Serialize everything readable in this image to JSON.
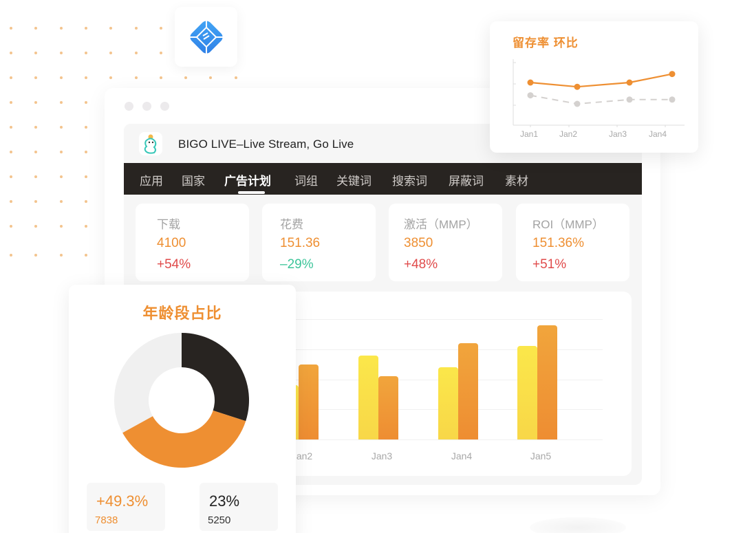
{
  "window": {
    "app_title": "BIGO LIVE–Live Stream, Go Live",
    "app_logo_icon": "bigo-mascot-icon",
    "brand_tile_icon": "blue-diamond-app-icon"
  },
  "nav": {
    "items": [
      {
        "label": "应用",
        "active": false
      },
      {
        "label": "国家",
        "active": false
      },
      {
        "label": "广告计划",
        "active": true
      },
      {
        "label": "词组",
        "active": false
      },
      {
        "label": "关键词",
        "active": false
      },
      {
        "label": "搜索词",
        "active": false
      },
      {
        "label": "屏蔽词",
        "active": false
      },
      {
        "label": "素材",
        "active": false
      }
    ]
  },
  "kpis": [
    {
      "label": "下载",
      "value": "4100",
      "delta": "+54%",
      "trend": "up"
    },
    {
      "label": "花费",
      "value": "151.36",
      "delta": "–29%",
      "trend": "down"
    },
    {
      "label": "激活（MMP）",
      "value": "3850",
      "delta": "+48%",
      "trend": "up"
    },
    {
      "label": "ROI（MMP）",
      "value": "151.36%",
      "delta": "+51%",
      "trend": "up"
    }
  ],
  "age_card": {
    "title": "年龄段占比",
    "stats": [
      {
        "big": "+49.3%",
        "small": "7838",
        "color": "#ee8f32"
      },
      {
        "big": "23%",
        "small": "5250",
        "color": "#222222"
      }
    ]
  },
  "retention_card": {
    "title": "留存率 环比"
  },
  "colors": {
    "accent": "#ee8f32",
    "nav_bg": "#282421",
    "up": "#e04b4b",
    "down": "#3dc59a",
    "bar_yellow": "#f9df4a",
    "bar_orange": "#ef9535"
  },
  "chart_data": [
    {
      "type": "bar",
      "title": "",
      "categories": [
        "Jan2",
        "Jan3",
        "Jan4",
        "Jan5"
      ],
      "series": [
        {
          "name": "series-yellow",
          "values": [
            1.8,
            2.8,
            2.4,
            3.1
          ]
        },
        {
          "name": "series-orange",
          "values": [
            2.5,
            2.1,
            3.2,
            3.8
          ]
        }
      ],
      "xlabel": "",
      "ylabel": "",
      "ylim": [
        0,
        4
      ],
      "grid": true,
      "note": "left part of chart (Jan1) hidden behind the age donut card"
    },
    {
      "type": "pie",
      "title": "年龄段占比",
      "donut": true,
      "slices": [
        {
          "label": "segment-dark",
          "value": 30,
          "color": "#282421"
        },
        {
          "label": "segment-orange",
          "value": 37,
          "color": "#ee8f32"
        },
        {
          "label": "segment-light",
          "value": 33,
          "color": "#f0f0f0"
        }
      ]
    },
    {
      "type": "line",
      "title": "留存率 环比",
      "categories": [
        "Jan1",
        "Jan2",
        "Jan3",
        "Jan4"
      ],
      "series": [
        {
          "name": "current",
          "values": [
            2.0,
            1.8,
            2.0,
            2.4
          ],
          "style": "solid",
          "color": "#ee8f32"
        },
        {
          "name": "previous",
          "values": [
            1.4,
            1.0,
            1.2,
            1.2
          ],
          "style": "dashed",
          "color": "#d4d1cf"
        }
      ],
      "ylim": [
        0,
        3
      ],
      "grid": false
    }
  ]
}
